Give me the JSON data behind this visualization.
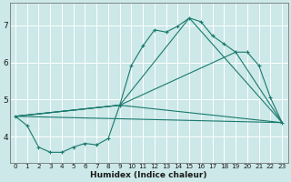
{
  "xlabel": "Humidex (Indice chaleur)",
  "bg_color": "#cce8e8",
  "grid_color": "#ffffff",
  "line_color": "#1a7a6e",
  "xlim": [
    -0.5,
    23.5
  ],
  "ylim": [
    3.3,
    7.6
  ],
  "yticks": [
    4,
    5,
    6,
    7
  ],
  "xticks": [
    0,
    1,
    2,
    3,
    4,
    5,
    6,
    7,
    8,
    9,
    10,
    11,
    12,
    13,
    14,
    15,
    16,
    17,
    18,
    19,
    20,
    21,
    22,
    23
  ],
  "curve_x": [
    0,
    1,
    2,
    3,
    4,
    5,
    6,
    7,
    8,
    9,
    10,
    11,
    12,
    13,
    14,
    15,
    16,
    17,
    18,
    19,
    20,
    21,
    22,
    23
  ],
  "curve_y": [
    4.55,
    4.3,
    3.72,
    3.58,
    3.58,
    3.72,
    3.82,
    3.78,
    3.95,
    4.85,
    5.92,
    6.45,
    6.88,
    6.82,
    6.98,
    7.2,
    7.1,
    6.72,
    6.5,
    6.28,
    6.28,
    5.92,
    5.05,
    4.38
  ],
  "straight_lines": [
    {
      "x": [
        0,
        23
      ],
      "y": [
        4.55,
        4.38
      ]
    },
    {
      "x": [
        0,
        9,
        23
      ],
      "y": [
        4.55,
        4.85,
        4.38
      ]
    },
    {
      "x": [
        0,
        9,
        19,
        23
      ],
      "y": [
        4.55,
        4.85,
        6.28,
        4.38
      ]
    },
    {
      "x": [
        0,
        9,
        15,
        23
      ],
      "y": [
        4.55,
        4.85,
        7.2,
        4.38
      ]
    }
  ]
}
